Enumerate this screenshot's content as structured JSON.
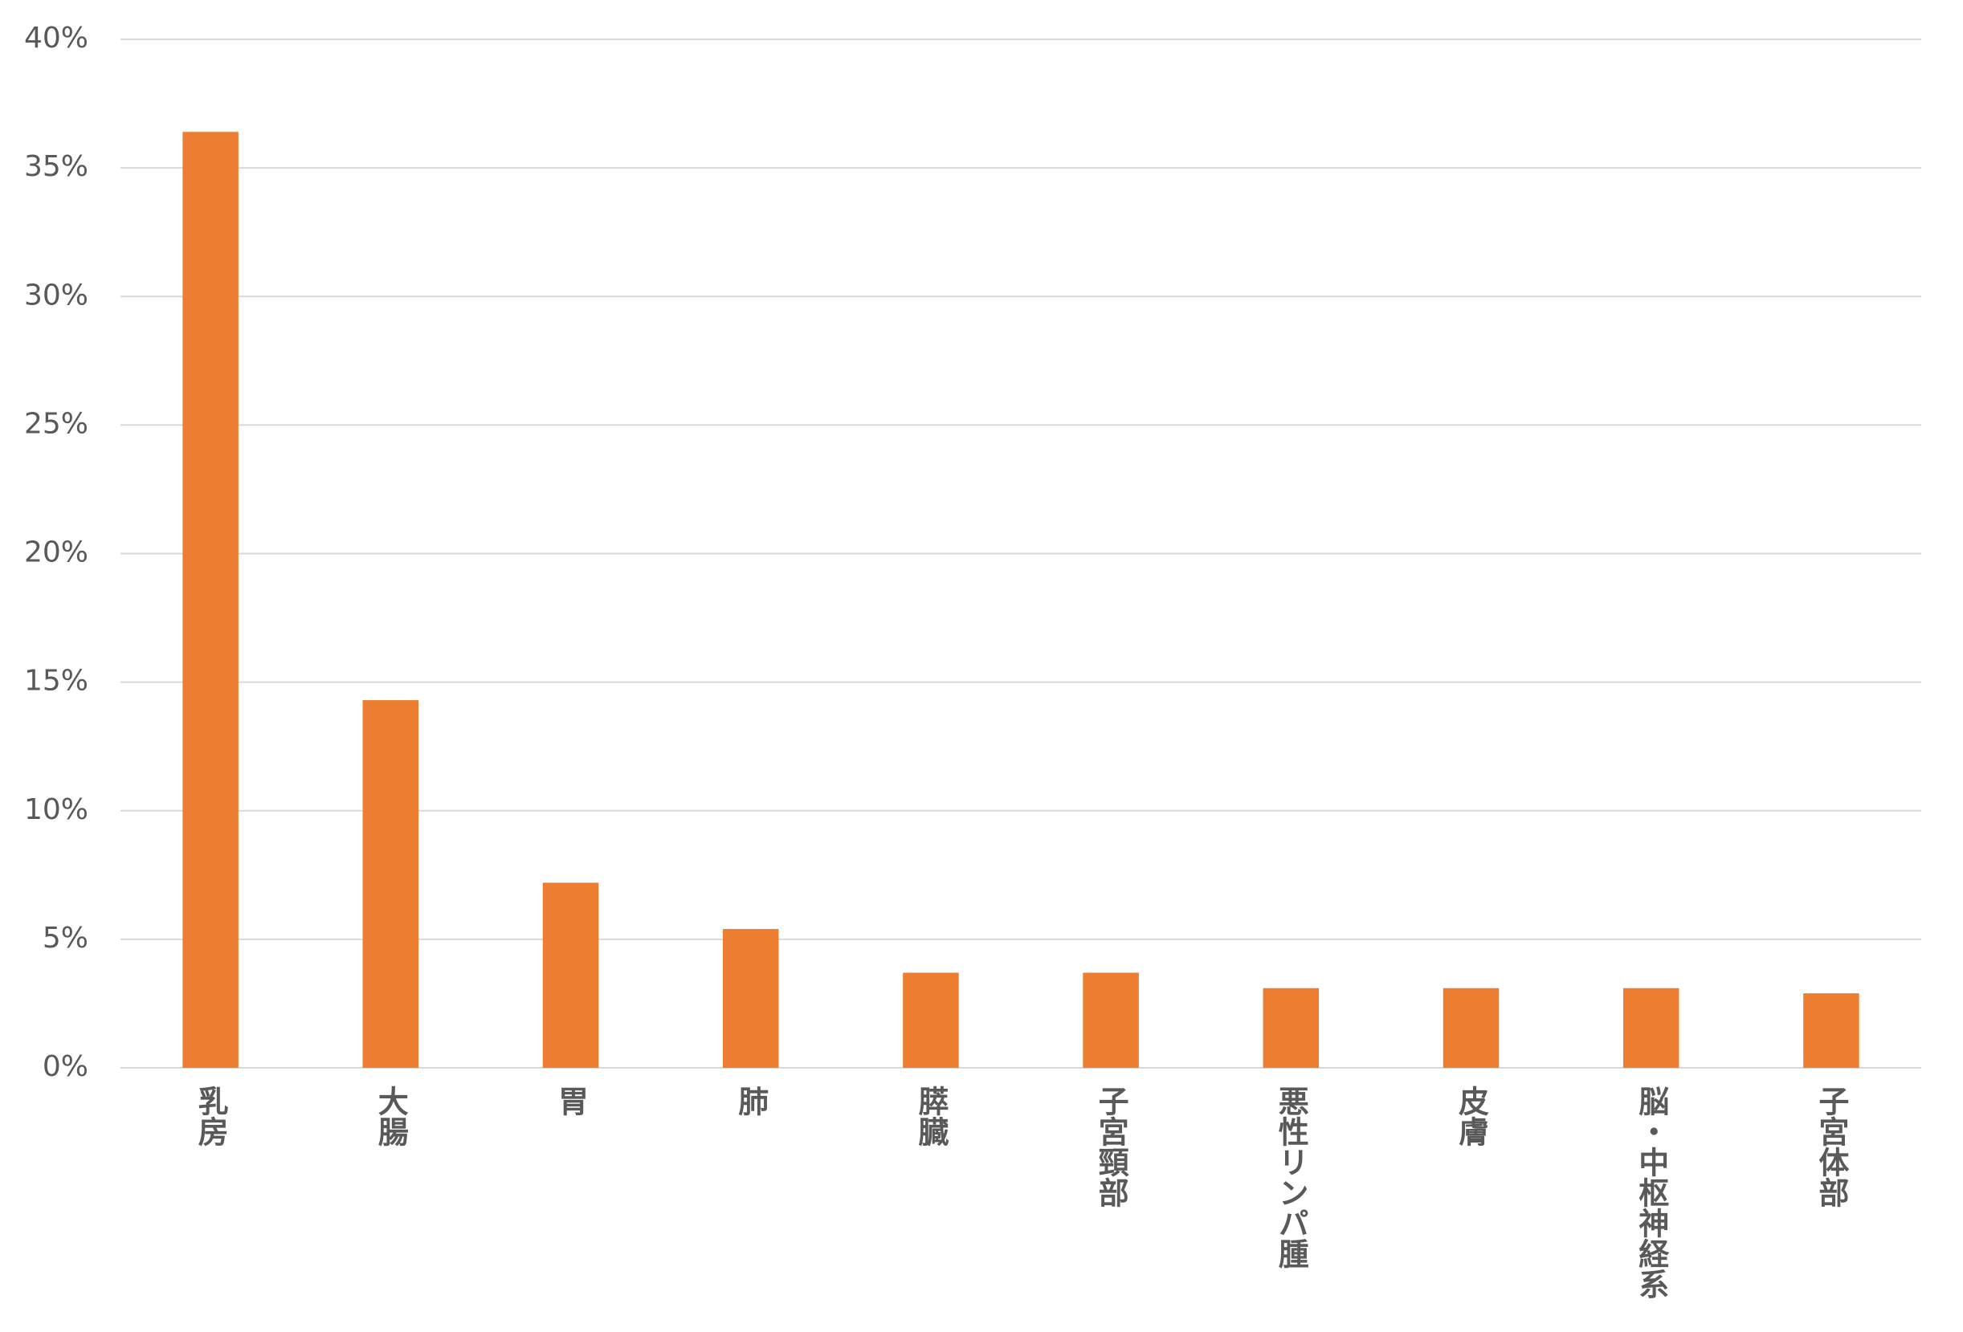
{
  "chart_data": {
    "type": "bar",
    "categories": [
      "乳房",
      "大腸",
      "胃",
      "肺",
      "膵臓",
      "子宮頸部",
      "悪性リンパ腫",
      "皮膚",
      "脳・中枢神経系",
      "子宮体部"
    ],
    "values": [
      36.4,
      14.3,
      7.2,
      5.4,
      3.7,
      3.7,
      3.1,
      3.1,
      3.1,
      2.9
    ],
    "color": "#ed7d31",
    "ylim": [
      0,
      40
    ],
    "yticks": [
      {
        "value": 0,
        "label": "0%"
      },
      {
        "value": 5,
        "label": "5%"
      },
      {
        "value": 10,
        "label": "10%"
      },
      {
        "value": 15,
        "label": "15%"
      },
      {
        "value": 20,
        "label": "20%"
      },
      {
        "value": 25,
        "label": "25%"
      },
      {
        "value": 30,
        "label": "30%"
      },
      {
        "value": 35,
        "label": "35%"
      },
      {
        "value": 40,
        "label": "40%"
      }
    ],
    "grid": true
  }
}
